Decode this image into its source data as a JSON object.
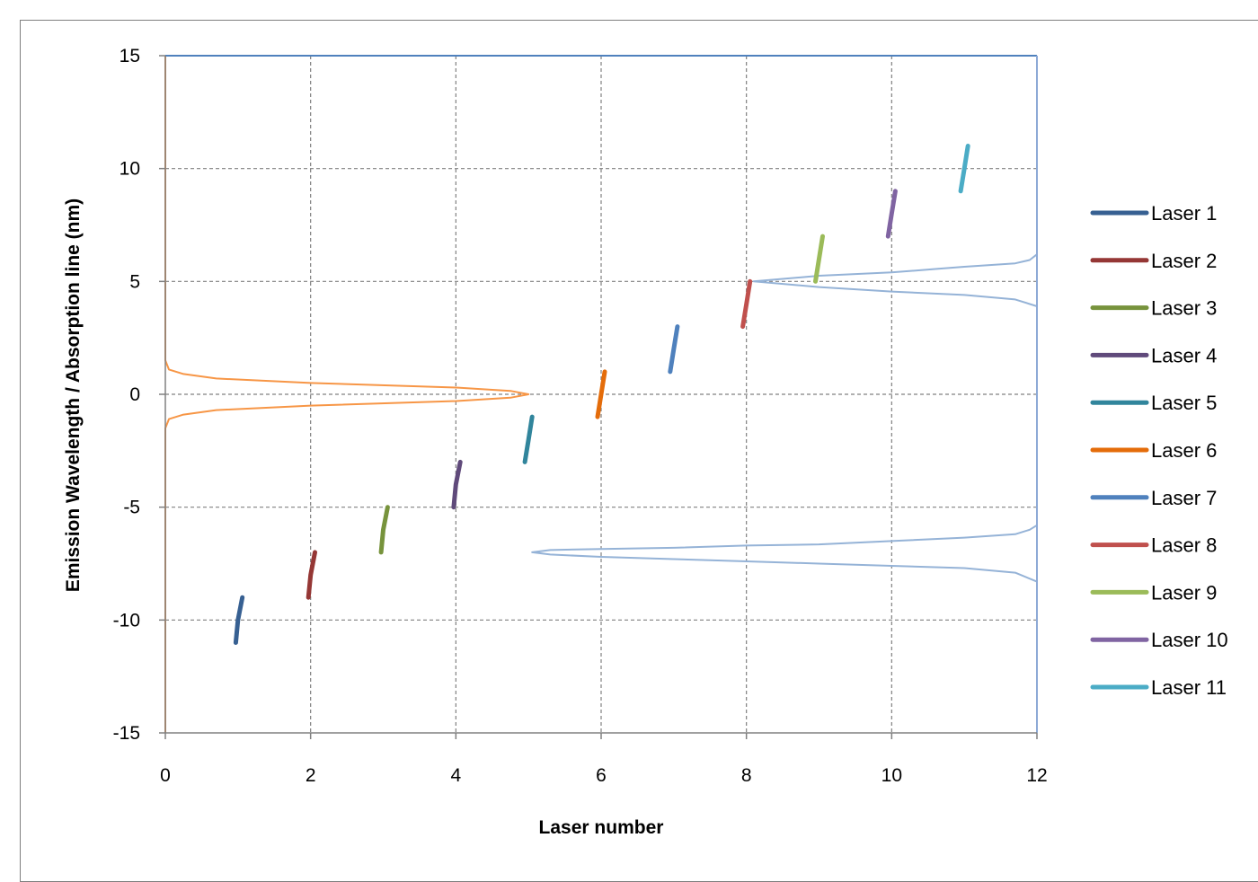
{
  "chart_data": {
    "type": "line",
    "title": "",
    "xlabel": "Laser number",
    "ylabel": "Emission Wavelength / Absorption line (nm)",
    "xlim": [
      0,
      12
    ],
    "ylim": [
      -15,
      15
    ],
    "xticks": [
      0,
      2,
      4,
      6,
      8,
      10,
      12
    ],
    "yticks": [
      -15,
      -10,
      -5,
      0,
      5,
      10,
      15
    ],
    "grid": true,
    "legend_position": "right",
    "series": [
      {
        "name": "Laser 1",
        "color": "#376092",
        "points": [
          [
            0.97,
            -11
          ],
          [
            1.0,
            -10
          ],
          [
            1.06,
            -9
          ]
        ]
      },
      {
        "name": "Laser 2",
        "color": "#953735",
        "points": [
          [
            1.97,
            -9
          ],
          [
            2.0,
            -8
          ],
          [
            2.06,
            -7
          ]
        ]
      },
      {
        "name": "Laser 3",
        "color": "#77933c",
        "points": [
          [
            2.97,
            -7
          ],
          [
            3.0,
            -6
          ],
          [
            3.06,
            -5
          ]
        ]
      },
      {
        "name": "Laser 4",
        "color": "#604a7b",
        "points": [
          [
            3.97,
            -5
          ],
          [
            4.0,
            -4
          ],
          [
            4.06,
            -3
          ]
        ]
      },
      {
        "name": "Laser 5",
        "color": "#31859c",
        "points": [
          [
            4.95,
            -3
          ],
          [
            5.0,
            -2
          ],
          [
            5.05,
            -1
          ]
        ]
      },
      {
        "name": "Laser 6",
        "color": "#e46c0a",
        "points": [
          [
            5.95,
            -1
          ],
          [
            6.0,
            0
          ],
          [
            6.05,
            1
          ]
        ]
      },
      {
        "name": "Laser 7",
        "color": "#4f81bd",
        "points": [
          [
            6.95,
            1
          ],
          [
            7.0,
            2
          ],
          [
            7.05,
            3
          ]
        ]
      },
      {
        "name": "Laser 8",
        "color": "#c0504d",
        "points": [
          [
            7.95,
            3
          ],
          [
            8.0,
            4
          ],
          [
            8.05,
            5
          ]
        ]
      },
      {
        "name": "Laser 9",
        "color": "#9bbb59",
        "points": [
          [
            8.95,
            5
          ],
          [
            9.0,
            6
          ],
          [
            9.05,
            7
          ]
        ]
      },
      {
        "name": "Laser 10",
        "color": "#8064a2",
        "points": [
          [
            9.95,
            7
          ],
          [
            10.0,
            8
          ],
          [
            10.05,
            9
          ]
        ]
      },
      {
        "name": "Laser 11",
        "color": "#4bacc6",
        "points": [
          [
            10.95,
            9
          ],
          [
            11.0,
            10
          ],
          [
            11.05,
            11
          ]
        ]
      }
    ],
    "absorption_lines": [
      {
        "color": "#f79646",
        "points": [
          [
            0.0,
            15
          ],
          [
            0.0,
            1.5
          ],
          [
            0.05,
            1.1
          ],
          [
            0.25,
            0.9
          ],
          [
            0.7,
            0.7
          ],
          [
            2.0,
            0.5
          ],
          [
            4.0,
            0.3
          ],
          [
            4.75,
            0.15
          ],
          [
            5.0,
            0.0
          ],
          [
            4.75,
            -0.15
          ],
          [
            4.0,
            -0.3
          ],
          [
            2.0,
            -0.5
          ],
          [
            0.7,
            -0.7
          ],
          [
            0.25,
            -0.9
          ],
          [
            0.05,
            -1.1
          ],
          [
            0.0,
            -1.5
          ],
          [
            0.0,
            -15
          ]
        ]
      },
      {
        "color": "#95b3d7",
        "points": [
          [
            12.0,
            6.2
          ],
          [
            11.9,
            5.95
          ],
          [
            11.7,
            5.8
          ],
          [
            11.0,
            5.65
          ],
          [
            10.6,
            5.55
          ],
          [
            10.0,
            5.4
          ],
          [
            9.0,
            5.25
          ],
          [
            8.1,
            5.0
          ],
          [
            9.0,
            4.75
          ],
          [
            10.0,
            4.55
          ],
          [
            11.0,
            4.4
          ],
          [
            11.7,
            4.2
          ],
          [
            12.0,
            3.9
          ]
        ]
      },
      {
        "color": "#95b3d7",
        "points": [
          [
            12.0,
            -5.8
          ],
          [
            11.9,
            -6.0
          ],
          [
            11.7,
            -6.2
          ],
          [
            11.0,
            -6.35
          ],
          [
            10.0,
            -6.5
          ],
          [
            9.0,
            -6.65
          ],
          [
            8.0,
            -6.7
          ],
          [
            7.0,
            -6.8
          ],
          [
            6.0,
            -6.85
          ],
          [
            5.3,
            -6.9
          ],
          [
            5.05,
            -7.0
          ],
          [
            5.3,
            -7.1
          ],
          [
            6.0,
            -7.2
          ],
          [
            7.0,
            -7.3
          ],
          [
            8.0,
            -7.4
          ],
          [
            9.0,
            -7.5
          ],
          [
            10.0,
            -7.6
          ],
          [
            11.0,
            -7.7
          ],
          [
            11.7,
            -7.9
          ],
          [
            12.0,
            -8.3
          ]
        ]
      }
    ]
  }
}
